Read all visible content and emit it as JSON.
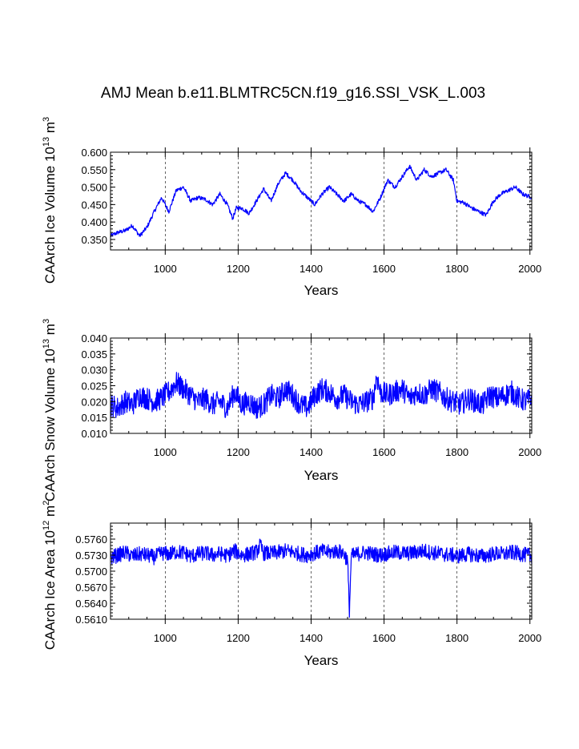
{
  "title": "AMJ Mean b.e11.BLMTRC5CN.f19_g16.SSI_VSK_L.003",
  "colors": {
    "series": "#0000ff",
    "axis": "#000000",
    "grid": "#000000"
  },
  "chart_data": [
    {
      "type": "line",
      "panel": "ice-volume",
      "title": "",
      "xlabel": "Years",
      "ylabel": {
        "main": "CAArch Ice Volume 10",
        "exp": "13",
        "unit": " m",
        "unit_exp": "3"
      },
      "xlim": [
        850,
        2005
      ],
      "ylim": [
        0.32,
        0.6
      ],
      "x_ticks": [
        1000,
        1200,
        1400,
        1600,
        1800,
        2000
      ],
      "y_ticks": [
        0.35,
        0.4,
        0.45,
        0.5,
        0.55,
        0.6
      ],
      "y_tick_labels": [
        "0.350",
        "0.400",
        "0.450",
        "0.500",
        "0.550",
        "0.600"
      ],
      "grid": "vertical dashed at major x ticks",
      "series": [
        {
          "name": "CAArch Ice Volume",
          "x": [
            850,
            870,
            890,
            910,
            930,
            950,
            970,
            990,
            1010,
            1030,
            1050,
            1070,
            1090,
            1110,
            1130,
            1150,
            1170,
            1185,
            1195,
            1210,
            1230,
            1250,
            1270,
            1290,
            1310,
            1330,
            1350,
            1370,
            1390,
            1410,
            1430,
            1450,
            1470,
            1490,
            1510,
            1530,
            1550,
            1570,
            1590,
            1610,
            1630,
            1650,
            1670,
            1690,
            1710,
            1730,
            1750,
            1770,
            1790,
            1800,
            1820,
            1840,
            1860,
            1880,
            1900,
            1920,
            1940,
            1960,
            1980,
            2005
          ],
          "values": [
            0.36,
            0.37,
            0.375,
            0.39,
            0.36,
            0.385,
            0.43,
            0.47,
            0.43,
            0.49,
            0.5,
            0.46,
            0.47,
            0.465,
            0.45,
            0.48,
            0.45,
            0.41,
            0.44,
            0.44,
            0.425,
            0.46,
            0.495,
            0.46,
            0.51,
            0.54,
            0.52,
            0.49,
            0.47,
            0.45,
            0.48,
            0.5,
            0.48,
            0.46,
            0.48,
            0.46,
            0.45,
            0.43,
            0.47,
            0.52,
            0.5,
            0.53,
            0.56,
            0.52,
            0.55,
            0.53,
            0.54,
            0.55,
            0.52,
            0.46,
            0.455,
            0.44,
            0.43,
            0.42,
            0.46,
            0.48,
            0.49,
            0.5,
            0.48,
            0.47
          ]
        }
      ]
    },
    {
      "type": "line",
      "panel": "snow-volume",
      "title": "",
      "xlabel": "Years",
      "ylabel": {
        "main": "CAArch Snow Volume 10",
        "exp": "13",
        "unit": " m",
        "unit_exp": "3"
      },
      "xlim": [
        850,
        2005
      ],
      "ylim": [
        0.01,
        0.04
      ],
      "x_ticks": [
        1000,
        1200,
        1400,
        1600,
        1800,
        2000
      ],
      "y_ticks": [
        0.01,
        0.015,
        0.02,
        0.025,
        0.03,
        0.035,
        0.04
      ],
      "y_tick_labels": [
        "0.010",
        "0.015",
        "0.020",
        "0.025",
        "0.030",
        "0.035",
        "0.040"
      ],
      "grid": "vertical dashed at major x ticks",
      "series": [
        {
          "name": "CAArch Snow Volume",
          "x": [
            850,
            870,
            890,
            910,
            930,
            950,
            970,
            990,
            1010,
            1030,
            1050,
            1070,
            1090,
            1110,
            1130,
            1150,
            1170,
            1190,
            1210,
            1230,
            1250,
            1270,
            1290,
            1310,
            1330,
            1350,
            1370,
            1390,
            1410,
            1430,
            1450,
            1470,
            1490,
            1510,
            1530,
            1550,
            1570,
            1580,
            1590,
            1610,
            1630,
            1650,
            1670,
            1690,
            1710,
            1730,
            1750,
            1770,
            1790,
            1810,
            1830,
            1850,
            1870,
            1890,
            1910,
            1930,
            1950,
            1970,
            1990,
            2005
          ],
          "values": [
            0.019,
            0.018,
            0.02,
            0.019,
            0.022,
            0.021,
            0.02,
            0.021,
            0.023,
            0.026,
            0.024,
            0.022,
            0.02,
            0.021,
            0.019,
            0.02,
            0.018,
            0.023,
            0.019,
            0.02,
            0.018,
            0.019,
            0.022,
            0.021,
            0.024,
            0.022,
            0.019,
            0.018,
            0.022,
            0.024,
            0.023,
            0.021,
            0.022,
            0.02,
            0.019,
            0.02,
            0.021,
            0.028,
            0.023,
            0.022,
            0.023,
            0.024,
            0.021,
            0.023,
            0.022,
            0.024,
            0.023,
            0.021,
            0.02,
            0.019,
            0.021,
            0.02,
            0.019,
            0.022,
            0.021,
            0.022,
            0.023,
            0.021,
            0.02,
            0.021
          ]
        }
      ]
    },
    {
      "type": "line",
      "panel": "ice-area",
      "title": "",
      "xlabel": "Years",
      "ylabel": {
        "main": "CAArch Ice Area 10",
        "exp": "12",
        "unit": " m",
        "unit_exp": "2"
      },
      "xlim": [
        850,
        2005
      ],
      "ylim": [
        0.561,
        0.579
      ],
      "x_ticks": [
        1000,
        1200,
        1400,
        1600,
        1800,
        2000
      ],
      "y_ticks": [
        0.561,
        0.564,
        0.567,
        0.57,
        0.573,
        0.576
      ],
      "y_tick_labels": [
        "0.5610",
        "0.5640",
        "0.5670",
        "0.5700",
        "0.5730",
        "0.5760"
      ],
      "grid": "vertical dashed at major x ticks",
      "series": [
        {
          "name": "CAArch Ice Area",
          "x": [
            850,
            870,
            890,
            910,
            930,
            950,
            970,
            990,
            1010,
            1030,
            1050,
            1070,
            1090,
            1110,
            1130,
            1150,
            1170,
            1190,
            1210,
            1230,
            1250,
            1260,
            1270,
            1290,
            1310,
            1330,
            1350,
            1370,
            1390,
            1410,
            1430,
            1450,
            1470,
            1490,
            1500,
            1505,
            1510,
            1530,
            1550,
            1570,
            1590,
            1610,
            1630,
            1650,
            1670,
            1690,
            1710,
            1730,
            1750,
            1770,
            1790,
            1800,
            1810,
            1830,
            1850,
            1870,
            1890,
            1910,
            1930,
            1950,
            1970,
            1990,
            2005
          ],
          "values": [
            0.5725,
            0.573,
            0.5735,
            0.5728,
            0.5732,
            0.573,
            0.5726,
            0.5734,
            0.5732,
            0.5736,
            0.5735,
            0.5728,
            0.5732,
            0.5734,
            0.573,
            0.5733,
            0.5729,
            0.5738,
            0.573,
            0.5732,
            0.5736,
            0.5748,
            0.5734,
            0.5733,
            0.5735,
            0.5738,
            0.5736,
            0.5732,
            0.573,
            0.5734,
            0.5737,
            0.5735,
            0.5738,
            0.5733,
            0.572,
            0.5622,
            0.5728,
            0.5733,
            0.5735,
            0.5732,
            0.573,
            0.5733,
            0.5735,
            0.5734,
            0.5733,
            0.5736,
            0.5738,
            0.5735,
            0.5733,
            0.5731,
            0.573,
            0.5728,
            0.5729,
            0.5732,
            0.573,
            0.5728,
            0.5731,
            0.5733,
            0.5732,
            0.5735,
            0.5733,
            0.573,
            0.5728
          ]
        }
      ]
    }
  ]
}
